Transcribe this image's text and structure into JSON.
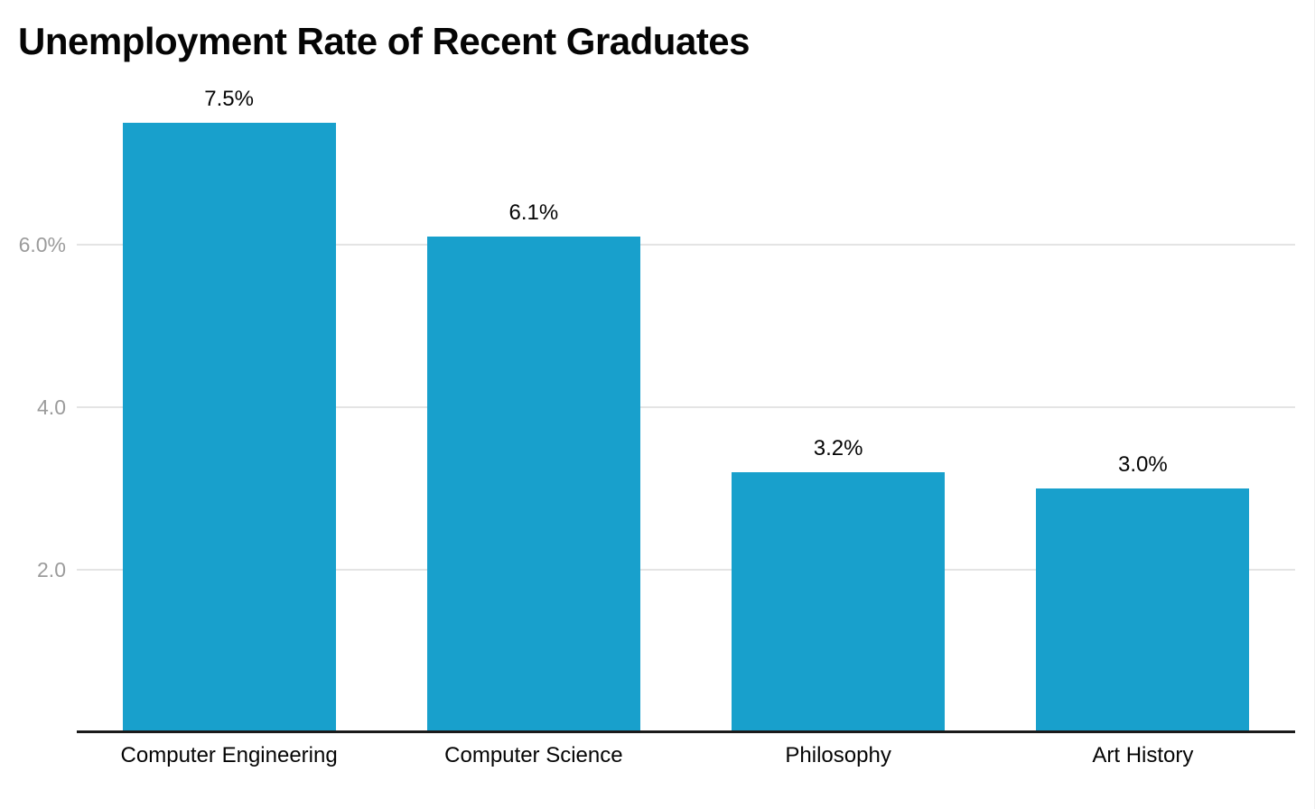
{
  "title": "Unemployment Rate of Recent Graduates",
  "colors": {
    "bar": "#18A0CC",
    "axis_line": "#1b1b1b",
    "gridline": "#e4e4e4",
    "tick_label": "#9b9b9b",
    "text": "#050505",
    "background": "#ffffff"
  },
  "chart_data": {
    "type": "bar",
    "title": "Unemployment Rate of Recent Graduates",
    "categories": [
      "Computer Engineering",
      "Computer Science",
      "Philosophy",
      "Art History"
    ],
    "values": [
      7.5,
      6.1,
      3.2,
      3.0
    ],
    "value_labels": [
      "7.5%",
      "6.1%",
      "3.2%",
      "3.0%"
    ],
    "xlabel": "",
    "ylabel": "",
    "ylim": [
      0,
      7.9
    ],
    "yticks": [
      {
        "value": 2.0,
        "label": "2.0"
      },
      {
        "value": 4.0,
        "label": "4.0"
      },
      {
        "value": 6.0,
        "label": "6.0%"
      }
    ],
    "grid": "horizontal",
    "legend": "none"
  }
}
